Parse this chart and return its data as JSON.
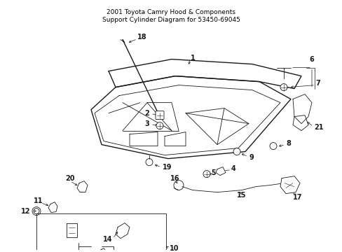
{
  "background_color": "#ffffff",
  "line_color": "#1a1a1a",
  "fig_width": 4.89,
  "fig_height": 3.6,
  "dpi": 100,
  "title_text": "2001 Toyota Camry Hood & Components\nSupport Cylinder Diagram for 53450-69045",
  "title_fontsize": 6.5,
  "title_color": "#000000",
  "lw_main": 1.0,
  "lw_thin": 0.6,
  "lw_med": 0.8,
  "label_fontsize": 7.0
}
